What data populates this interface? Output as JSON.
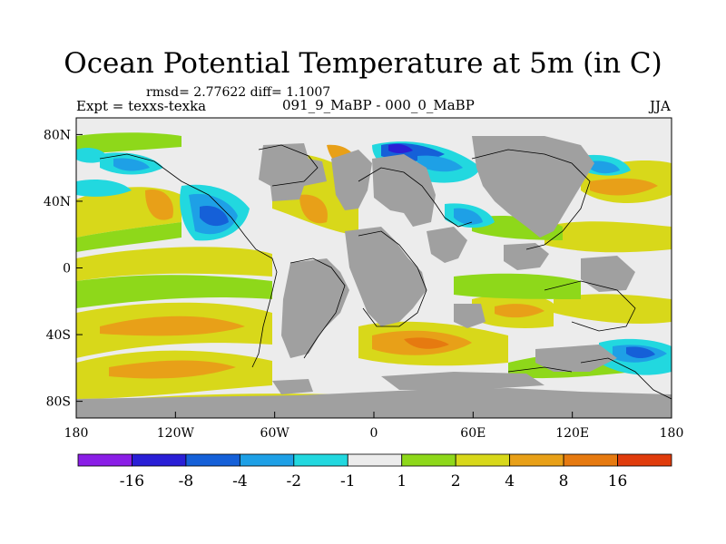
{
  "title": "Ocean Potential Temperature at 5m (in C)",
  "stats": "rmsd= 2.77622 diff= 1.1007",
  "experiment": "Expt = texxs-texka",
  "subtitle": "091_9_MaBP - 000_0_MaBP",
  "season": "JJA",
  "x_axis": {
    "ticks": [
      "180",
      "120W",
      "60W",
      "0",
      "60E",
      "120E",
      "180"
    ],
    "values": [
      -180,
      -120,
      -60,
      0,
      60,
      120,
      180
    ]
  },
  "y_axis": {
    "ticks": [
      "80N",
      "40N",
      "0",
      "40S",
      "80S"
    ],
    "values": [
      80,
      40,
      0,
      -40,
      -80
    ],
    "range": [
      -90,
      90
    ]
  },
  "colorbar": {
    "labels": [
      "-16",
      "-8",
      "-4",
      "-2",
      "-1",
      "1",
      "2",
      "4",
      "8",
      "16"
    ],
    "colors": [
      "#8a1ee6",
      "#2a1fd6",
      "#1560d8",
      "#1ea0e6",
      "#22d8df",
      "#ececec",
      "#8ed81a",
      "#d8d81a",
      "#e8a018",
      "#e67a10",
      "#e03c0c"
    ]
  },
  "land_color": "#a0a0a0",
  "background_color": "#ececec"
}
